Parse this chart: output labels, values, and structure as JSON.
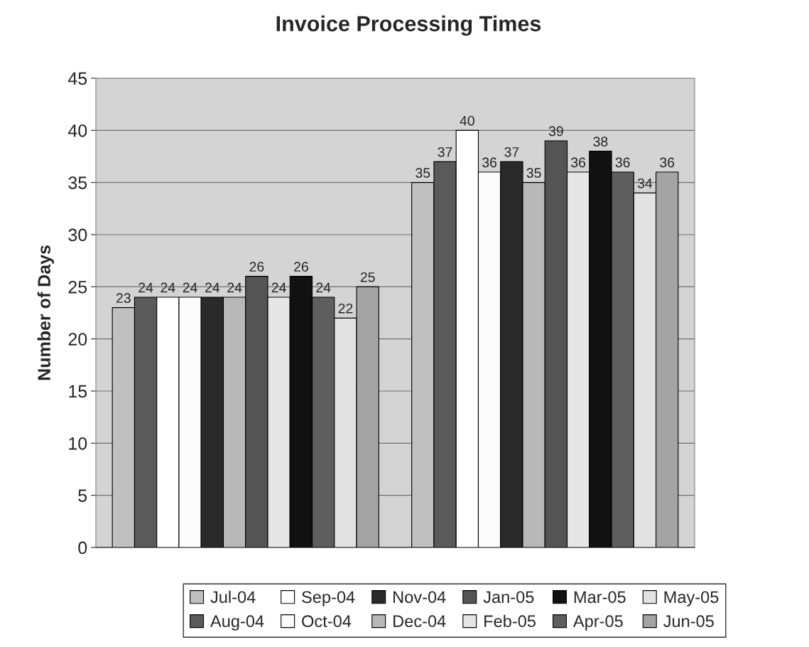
{
  "chart_data": {
    "type": "bar",
    "title": "Invoice Processing Times",
    "ylabel": "Number of Days",
    "categories": [
      null,
      null
    ],
    "series": [
      {
        "name": "Jul-04",
        "color": "#c0c0c0",
        "values": [
          23,
          35
        ]
      },
      {
        "name": "Aug-04",
        "color": "#5a5a5a",
        "values": [
          24,
          37
        ]
      },
      {
        "name": "Sep-04",
        "color": "#ffffff",
        "values": [
          24,
          40
        ]
      },
      {
        "name": "Oct-04",
        "color": "#fcfcfc",
        "values": [
          24,
          36
        ]
      },
      {
        "name": "Nov-04",
        "color": "#2a2a2a",
        "values": [
          24,
          37
        ]
      },
      {
        "name": "Dec-04",
        "color": "#b8b8b8",
        "values": [
          24,
          35
        ]
      },
      {
        "name": "Jan-05",
        "color": "#545454",
        "values": [
          26,
          39
        ]
      },
      {
        "name": "Feb-05",
        "color": "#e6e6e6",
        "values": [
          24,
          36
        ]
      },
      {
        "name": "Mar-05",
        "color": "#111111",
        "values": [
          26,
          38
        ]
      },
      {
        "name": "Apr-05",
        "color": "#5e5e5e",
        "values": [
          24,
          36
        ]
      },
      {
        "name": "May-05",
        "color": "#e2e2e2",
        "values": [
          22,
          34
        ]
      },
      {
        "name": "Jun-05",
        "color": "#a4a4a4",
        "values": [
          25,
          36
        ]
      }
    ],
    "ylim": [
      0,
      45
    ],
    "yticks": [
      0,
      5,
      10,
      15,
      20,
      25,
      30,
      35,
      40,
      45
    ],
    "grid": "y",
    "legend": "bottom",
    "data_labels": true
  }
}
